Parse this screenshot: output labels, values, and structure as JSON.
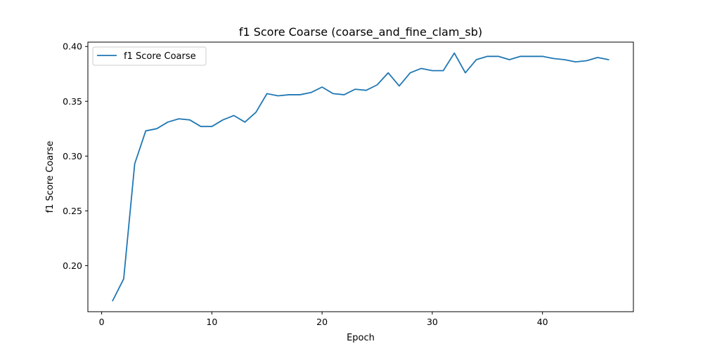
{
  "chart_data": {
    "type": "line",
    "title": "f1 Score Coarse (coarse_and_fine_clam_sb)",
    "xlabel": "Epoch",
    "ylabel": "f1 Score Coarse",
    "xlim": [
      -1.25,
      48.25
    ],
    "ylim": [
      0.158,
      0.404
    ],
    "xticks": [
      0,
      10,
      20,
      30,
      40
    ],
    "yticks": [
      0.2,
      0.25,
      0.3,
      0.35,
      0.4
    ],
    "xtick_labels": [
      "0",
      "10",
      "20",
      "30",
      "40"
    ],
    "ytick_labels": [
      "0.20",
      "0.25",
      "0.30",
      "0.35",
      "0.40"
    ],
    "legend_position": "top-left",
    "grid": false,
    "series": [
      {
        "name": "f1 Score Coarse",
        "color": "#1f77b4",
        "x": [
          1,
          2,
          3,
          4,
          5,
          6,
          7,
          8,
          9,
          10,
          11,
          12,
          13,
          14,
          15,
          16,
          17,
          18,
          19,
          20,
          21,
          22,
          23,
          24,
          25,
          26,
          27,
          28,
          29,
          30,
          31,
          32,
          33,
          34,
          35,
          36,
          37,
          38,
          39,
          40,
          41,
          42,
          43,
          44,
          45,
          46
        ],
        "y": [
          0.168,
          0.188,
          0.293,
          0.323,
          0.325,
          0.331,
          0.334,
          0.333,
          0.327,
          0.327,
          0.333,
          0.337,
          0.331,
          0.34,
          0.357,
          0.355,
          0.356,
          0.356,
          0.358,
          0.363,
          0.357,
          0.356,
          0.361,
          0.36,
          0.365,
          0.376,
          0.364,
          0.376,
          0.38,
          0.378,
          0.378,
          0.394,
          0.376,
          0.388,
          0.391,
          0.391,
          0.388,
          0.391,
          0.391,
          0.391,
          0.389,
          0.388,
          0.386,
          0.387,
          0.39,
          0.388
        ]
      }
    ]
  }
}
